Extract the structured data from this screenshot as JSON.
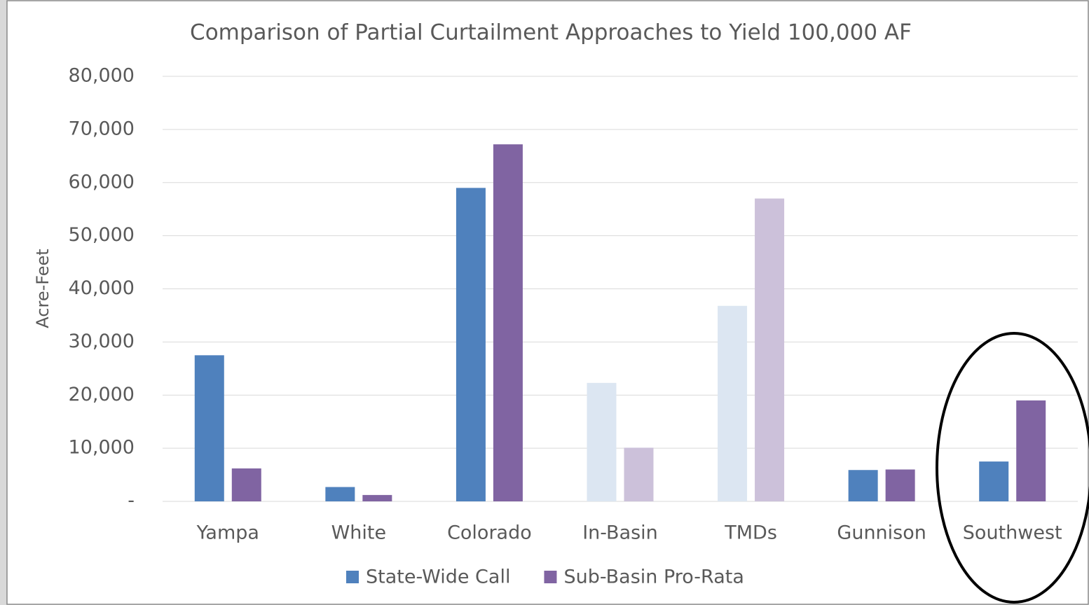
{
  "chart_data": {
    "type": "bar",
    "title": "Comparison of Partial Curtailment Approaches to Yield 100,000 AF",
    "ylabel": "Acre-Feet",
    "categories": [
      "Yampa",
      "White",
      "Colorado",
      "In-Basin",
      "TMDs",
      "Gunnison",
      "Southwest"
    ],
    "series": [
      {
        "name": "State-Wide Call",
        "color": "#4f81bd",
        "colors": [
          "#4f81bd",
          "#4f81bd",
          "#4f81bd",
          "#dce6f2",
          "#dce6f2",
          "#4f81bd",
          "#4f81bd"
        ],
        "values": [
          27500,
          2700,
          59000,
          22300,
          36800,
          5900,
          7500
        ]
      },
      {
        "name": "Sub-Basin Pro-Rata",
        "color": "#8064a2",
        "colors": [
          "#8064a2",
          "#8064a2",
          "#8064a2",
          "#ccc1da",
          "#ccc1da",
          "#8064a2",
          "#8064a2"
        ],
        "values": [
          6200,
          1200,
          67200,
          10100,
          57000,
          6000,
          19000
        ]
      }
    ],
    "ylim": [
      0,
      80000
    ],
    "yticks": [
      {
        "value": 0,
        "label": "-"
      },
      {
        "value": 10000,
        "label": "10,000"
      },
      {
        "value": 20000,
        "label": "20,000"
      },
      {
        "value": 30000,
        "label": "30,000"
      },
      {
        "value": 40000,
        "label": "40,000"
      },
      {
        "value": 50000,
        "label": "50,000"
      },
      {
        "value": 60000,
        "label": "60,000"
      },
      {
        "value": 70000,
        "label": "70,000"
      },
      {
        "value": 80000,
        "label": "80,000"
      }
    ],
    "grid": true,
    "legend": "bottom"
  }
}
